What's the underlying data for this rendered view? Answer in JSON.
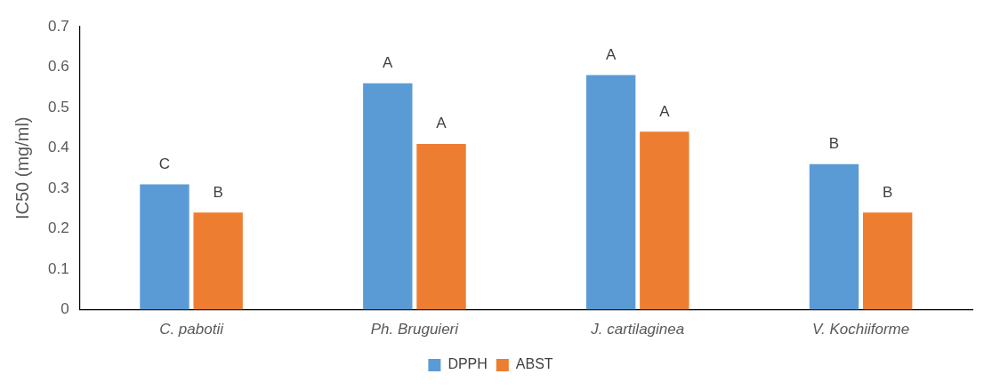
{
  "chart_data": {
    "type": "bar",
    "ylabel": "IC50 (mg/ml)",
    "categories": [
      "C. pabotii",
      "Ph. Bruguieri",
      "J. cartilaginea",
      "V. Kochiiforme"
    ],
    "series": [
      {
        "name": "DPPH",
        "color": "#5b9bd5",
        "values": [
          0.31,
          0.56,
          0.58,
          0.36
        ],
        "value_labels": [
          "C",
          "A",
          "A",
          "B"
        ]
      },
      {
        "name": "ABST",
        "color": "#ed7d31",
        "values": [
          0.24,
          0.41,
          0.44,
          0.24
        ],
        "value_labels": [
          "B",
          "A",
          "A",
          "B"
        ]
      }
    ],
    "ylim": [
      0,
      0.7
    ],
    "yticks": [
      0,
      0.1,
      0.2,
      0.3,
      0.4,
      0.5,
      0.6,
      0.7
    ],
    "grid": false,
    "legend": "bottom"
  }
}
